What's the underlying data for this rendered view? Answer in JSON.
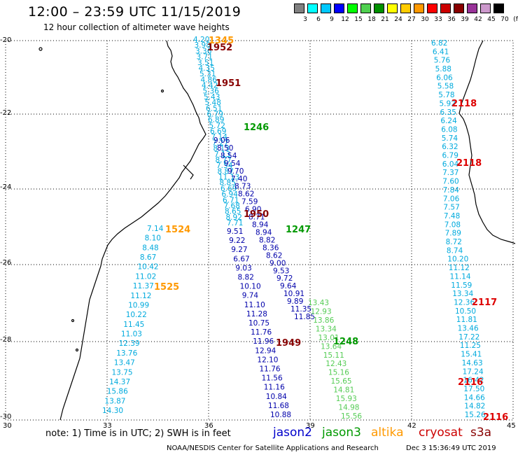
{
  "title": "12:00 – 23:59 UTC 11/15/2019",
  "subtitle": "12 hour collection of altimeter wave heights",
  "colorbar": {
    "labels": [
      "3",
      "6",
      "9",
      "12",
      "15",
      "18",
      "21",
      "24",
      "27",
      "30",
      "33",
      "36",
      "39",
      "42",
      "45",
      "70",
      "(ft)"
    ],
    "colors": [
      "#808080",
      "#00ffff",
      "#00c8ff",
      "#0000ff",
      "#00ff00",
      "#50d050",
      "#009000",
      "#ffff00",
      "#ffcc00",
      "#ff9900",
      "#ff0000",
      "#cc0000",
      "#880000",
      "#993399",
      "#cc99cc",
      "#000000"
    ]
  },
  "lat_labels": [
    "-20",
    "-22",
    "-24",
    "-26",
    "-28",
    "-30"
  ],
  "lon_labels": [
    "30",
    "33",
    "36",
    "39",
    "42",
    "45"
  ],
  "note": "note:  1) Time is in UTC;  2) SWH is in feet",
  "satellites": [
    {
      "name": "jason2",
      "color": "#0000cc"
    },
    {
      "name": "jason3",
      "color": "#009900"
    },
    {
      "name": "altika",
      "color": "#ff9900"
    },
    {
      "name": "cryosat",
      "color": "#cc0000"
    },
    {
      "name": "s3a",
      "color": "#880000"
    }
  ],
  "credit": "NOAA/NESDIS Center for Satellite Applications and Research",
  "stamp": "Dec  3 15:36:49 UTC 2019",
  "colors": {
    "light": "#00aadd",
    "dark": "#0000aa",
    "green": "#009900",
    "lgreen": "#55cc55",
    "orange": "#ff9900",
    "red": "#dd0000",
    "maroon": "#880000"
  },
  "pass_times": [
    {
      "text": "1345",
      "color": "orange"
    },
    {
      "text": "1952",
      "color": "maroon"
    },
    {
      "text": "1951",
      "color": "maroon"
    },
    {
      "text": "1246",
      "color": "green"
    },
    {
      "text": "2118",
      "color": "red"
    },
    {
      "text": "2118",
      "color": "red"
    },
    {
      "text": "1950",
      "color": "maroon"
    },
    {
      "text": "1524",
      "color": "orange"
    },
    {
      "text": "1247",
      "color": "green"
    },
    {
      "text": "1525",
      "color": "orange"
    },
    {
      "text": "2117",
      "color": "red"
    },
    {
      "text": "1949",
      "color": "maroon"
    },
    {
      "text": "1248",
      "color": "green"
    },
    {
      "text": "2116",
      "color": "red"
    },
    {
      "text": "2116",
      "color": "red"
    }
  ],
  "tracks": [
    {
      "color": "light",
      "values": [
        "4.20",
        "3.98",
        "3.36",
        "3.71",
        "3.51",
        "4.35",
        "5.31",
        "4.86",
        "4.42",
        "5.36",
        "5.43",
        "5.48",
        "6.51",
        "6.79",
        "6.89",
        "5.72",
        "6.69",
        "7.14",
        "7.27",
        "8.13",
        "7.13",
        "8.77",
        "7.54",
        "8.87",
        "11.13",
        "8.85",
        "6.69",
        "6.94",
        "6.71",
        "7.68",
        "8.65",
        "8.92",
        "7.71"
      ]
    },
    {
      "color": "dark",
      "values": [
        "9.06",
        "8.50",
        "8.54",
        "9.54",
        "9.70",
        "7.40",
        "8.73",
        "8.62",
        "7.59",
        "6.90",
        "8.71",
        "8.94",
        "8.94",
        "8.82",
        "8.36",
        "8.62",
        "9.00",
        "9.53",
        "9.72",
        "9.64",
        "10.91",
        "9.89",
        "11.35",
        "11.85"
      ]
    },
    {
      "color": "dark",
      "values": [
        "9.51",
        "9.22",
        "9.27",
        "6.67",
        "9.03",
        "8.82",
        "10.10",
        "9.74",
        "11.10",
        "11.28",
        "10.75",
        "11.76",
        "11.96",
        "12.94",
        "12.10",
        "11.76",
        "11.56",
        "11.16",
        "10.84",
        "11.68",
        "10.88"
      ]
    },
    {
      "color": "light",
      "values": [
        "7.14",
        "8.10",
        "8.48",
        "8.67",
        "10.42",
        "11.02",
        "11.37",
        "11.12",
        "10.99",
        "10.22",
        "11.45",
        "11.03",
        "12.39",
        "13.76",
        "13.47",
        "13.75",
        "14.37",
        "15.86",
        "13.87",
        "14.30"
      ]
    },
    {
      "color": "lgreen",
      "values": [
        "13.43",
        "12.93",
        "13.86",
        "13.34",
        "13.01",
        "13.64",
        "15.11",
        "12.43",
        "15.16",
        "15.65",
        "14.81",
        "15.93",
        "14.98",
        "15.56"
      ]
    },
    {
      "color": "light",
      "values": [
        "6.82",
        "6.41",
        "5.76",
        "5.88",
        "6.06",
        "5.58",
        "5.78",
        "5.92",
        "6.35",
        "6.24",
        "6.08",
        "5.74",
        "6.32",
        "6.79",
        "6.04",
        "7.37",
        "7.60",
        "7.84",
        "7.06",
        "7.57",
        "7.48",
        "7.08",
        "7.89",
        "8.72",
        "8.74",
        "10.20",
        "11.12",
        "11.14",
        "11.59",
        "13.34",
        "12.36",
        "10.50",
        "11.81",
        "13.46",
        "17.22",
        "11.25",
        "15.41",
        "14.63",
        "17.24",
        "16.42",
        "17.50",
        "14.66",
        "14.82",
        "15.26"
      ]
    }
  ]
}
